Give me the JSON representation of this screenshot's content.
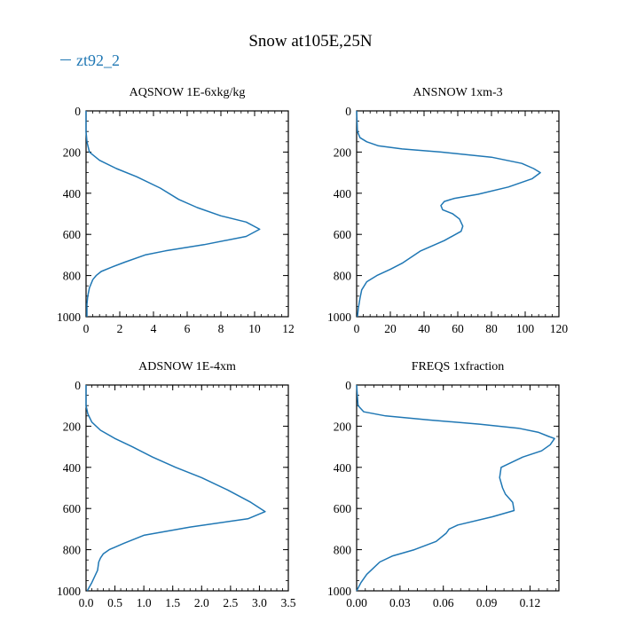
{
  "figure": {
    "title": "Snow at105E,25N",
    "legend_label": "zt92_2",
    "series_color": "#1f77b4"
  },
  "chart_data": [
    {
      "type": "line",
      "title": "AQSNOW  1E-6xkg/kg",
      "xlim": [
        0,
        12
      ],
      "ylim": [
        1000,
        0
      ],
      "xticks": [
        "0",
        "2",
        "4",
        "6",
        "8",
        "10",
        "12"
      ],
      "xtick_values": [
        0,
        2,
        4,
        6,
        8,
        10,
        12
      ],
      "yticks": [
        "0",
        "200",
        "400",
        "600",
        "800",
        "1000"
      ],
      "ytick_values": [
        0,
        200,
        400,
        600,
        800,
        1000
      ],
      "series": [
        {
          "x": [
            0,
            0,
            0.05,
            0.2,
            0.8,
            1.8,
            3.0,
            4.4,
            5.5,
            6.6,
            8.0,
            9.5,
            10.3,
            9.5,
            7.0,
            4.7,
            3.5,
            2.3,
            1.5,
            0.9,
            0.6,
            0.4,
            0.2,
            0.1,
            0.05,
            0.05
          ],
          "y": [
            0,
            100,
            150,
            200,
            240,
            280,
            320,
            375,
            430,
            470,
            510,
            540,
            575,
            610,
            650,
            680,
            700,
            735,
            760,
            780,
            800,
            820,
            860,
            900,
            940,
            1000
          ]
        }
      ]
    },
    {
      "type": "line",
      "title": "ANSNOW  1xm-3",
      "xlim": [
        0,
        120
      ],
      "ylim": [
        1000,
        0
      ],
      "xticks": [
        "0",
        "20",
        "40",
        "60",
        "80",
        "100",
        "120"
      ],
      "xtick_values": [
        0,
        20,
        40,
        60,
        80,
        100,
        120
      ],
      "yticks": [
        "0",
        "200",
        "400",
        "600",
        "800",
        "1000"
      ],
      "ytick_values": [
        0,
        200,
        400,
        600,
        800,
        1000
      ],
      "series": [
        {
          "x": [
            0,
            0.5,
            2,
            6,
            13,
            27,
            50,
            80,
            98,
            105,
            109,
            104,
            90,
            72,
            58,
            52,
            50,
            51,
            57,
            61,
            63,
            62,
            52,
            38,
            27,
            20,
            12,
            6,
            3,
            2,
            1,
            0.5
          ],
          "y": [
            0,
            100,
            130,
            150,
            170,
            185,
            200,
            225,
            255,
            280,
            300,
            330,
            370,
            405,
            425,
            440,
            460,
            480,
            500,
            525,
            560,
            585,
            630,
            680,
            740,
            770,
            800,
            830,
            870,
            910,
            960,
            1000
          ]
        }
      ]
    },
    {
      "type": "line",
      "title": "ADSNOW  1E-4xm",
      "xlim": [
        0,
        3.5
      ],
      "ylim": [
        1000,
        0
      ],
      "xticks": [
        "0.0",
        "0.5",
        "1.0",
        "1.5",
        "2.0",
        "2.5",
        "3.0",
        "3.5"
      ],
      "xtick_values": [
        0,
        0.5,
        1.0,
        1.5,
        2.0,
        2.5,
        3.0,
        3.5
      ],
      "yticks": [
        "0",
        "200",
        "400",
        "600",
        "800",
        "1000"
      ],
      "ytick_values": [
        0,
        200,
        400,
        600,
        800,
        1000
      ],
      "series": [
        {
          "x": [
            0,
            0,
            0.03,
            0.1,
            0.25,
            0.5,
            0.8,
            1.15,
            1.55,
            2.0,
            2.45,
            2.85,
            3.1,
            2.8,
            1.8,
            1.0,
            0.65,
            0.4,
            0.3,
            0.25,
            0.22,
            0.2,
            0.1,
            0.02
          ],
          "y": [
            0,
            100,
            140,
            180,
            220,
            260,
            300,
            350,
            400,
            450,
            510,
            570,
            615,
            650,
            690,
            730,
            770,
            800,
            820,
            840,
            860,
            900,
            960,
            1000
          ]
        }
      ]
    },
    {
      "type": "line",
      "title": "FREQS  1xfraction",
      "xlim": [
        0,
        0.14
      ],
      "ylim": [
        1000,
        0
      ],
      "xticks": [
        "0.00",
        "0.03",
        "0.06",
        "0.09",
        "0.12"
      ],
      "xtick_values": [
        0,
        0.03,
        0.06,
        0.09,
        0.12
      ],
      "yticks": [
        "0",
        "200",
        "400",
        "600",
        "800",
        "1000"
      ],
      "ytick_values": [
        0,
        200,
        400,
        600,
        800,
        1000
      ],
      "series": [
        {
          "x": [
            0,
            0.001,
            0.005,
            0.02,
            0.05,
            0.085,
            0.112,
            0.126,
            0.133,
            0.137,
            0.134,
            0.128,
            0.115,
            0.1,
            0.099,
            0.101,
            0.103,
            0.108,
            0.109,
            0.094,
            0.07,
            0.064,
            0.062,
            0.055,
            0.04,
            0.025,
            0.016,
            0.01,
            0.007,
            0.003,
            0
          ],
          "y": [
            0,
            100,
            130,
            150,
            170,
            190,
            210,
            230,
            250,
            260,
            290,
            320,
            350,
            400,
            450,
            500,
            530,
            570,
            610,
            640,
            680,
            700,
            720,
            760,
            800,
            830,
            860,
            900,
            920,
            960,
            1000
          ]
        }
      ]
    }
  ]
}
